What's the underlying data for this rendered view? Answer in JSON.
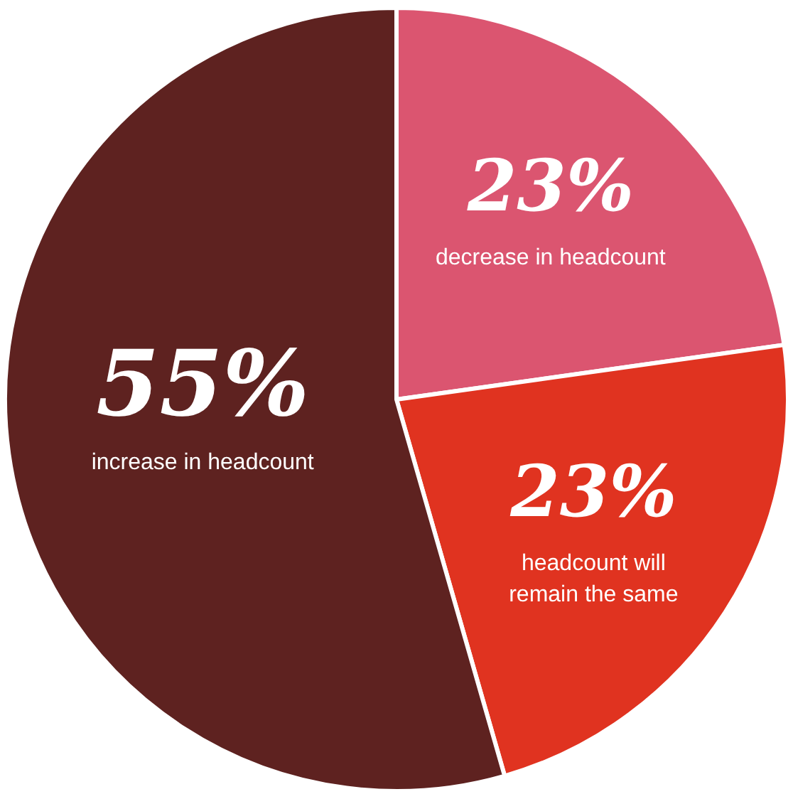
{
  "chart_data": {
    "type": "pie",
    "categories": [
      "decrease in headcount",
      "headcount will remain the same",
      "increase in headcount"
    ],
    "values": [
      23,
      23,
      55
    ],
    "colors": [
      "#db5570",
      "#e03320",
      "#5e2220"
    ],
    "value_labels": [
      "23%",
      "23%",
      "55%"
    ],
    "legend": false
  }
}
